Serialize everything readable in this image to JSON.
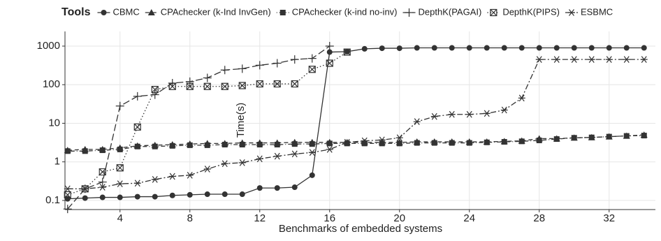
{
  "chart_data": {
    "type": "line",
    "legend_title": "Tools",
    "xlabel": "Benchmarks of embedded systems",
    "ylabel": "Time(s)",
    "log_y": true,
    "grid": true,
    "legend": "top",
    "x": [
      1,
      2,
      3,
      4,
      5,
      6,
      7,
      8,
      9,
      10,
      11,
      12,
      13,
      14,
      15,
      16,
      17,
      18,
      19,
      20,
      21,
      22,
      23,
      24,
      25,
      26,
      27,
      28,
      29,
      30,
      31,
      32,
      33,
      34
    ],
    "xlim": [
      0.85,
      34.65
    ],
    "xticks": [
      4,
      8,
      12,
      16,
      20,
      24,
      28,
      32
    ],
    "ylim": [
      0.058,
      2400
    ],
    "yticks": [
      0.1,
      1,
      10,
      100,
      1000
    ],
    "series": [
      {
        "name": "CBMC",
        "color": "#333333",
        "marker": "circle",
        "dash": "solid",
        "values": [
          0.11,
          0.115,
          0.12,
          0.12,
          0.125,
          0.125,
          0.135,
          0.14,
          0.145,
          0.145,
          0.145,
          0.21,
          0.21,
          0.22,
          0.45,
          700,
          720,
          850,
          880,
          880,
          900,
          900,
          900,
          900,
          900,
          900,
          900,
          900,
          900,
          900,
          900,
          900,
          900,
          900
        ]
      },
      {
        "name": "CPAchecker (k-Ind InvGen)",
        "color": "#333333",
        "marker": "triangle",
        "dash": "dashed",
        "values": [
          2,
          2.1,
          2.1,
          2.3,
          2.6,
          2.7,
          2.8,
          2.9,
          3,
          3,
          3.1,
          3.1,
          3.1,
          3.2,
          3.2,
          3.2,
          3.2,
          3.2,
          3.2,
          3.2,
          3.3,
          3.3,
          3.3,
          3.3,
          3.3,
          3.4,
          3.5,
          4,
          4,
          4.2,
          4.3,
          4.5,
          4.7,
          5
        ]
      },
      {
        "name": "CPAchecker (k-ind no-inv)",
        "color": "#333333",
        "marker": "square",
        "dash": "dotdash",
        "values": [
          1.9,
          1.9,
          2,
          2.1,
          2.5,
          2.5,
          2.6,
          2.7,
          2.7,
          2.8,
          2.8,
          2.8,
          2.8,
          2.9,
          2.9,
          3,
          3,
          3,
          3,
          3,
          3.1,
          3.1,
          3.1,
          3.1,
          3.2,
          3.3,
          3.4,
          3.6,
          3.9,
          4.2,
          4.3,
          4.5,
          4.7,
          4.8
        ]
      },
      {
        "name": "DepthK(PAGAI)",
        "color": "#333333",
        "marker": "plus",
        "dash": "longdash",
        "values": [
          0.06,
          0.2,
          0.3,
          28,
          50,
          55,
          110,
          120,
          150,
          240,
          260,
          320,
          360,
          450,
          480,
          1000,
          null,
          null,
          null,
          null,
          null,
          null,
          null,
          null,
          null,
          null,
          null,
          null,
          null,
          null,
          null,
          null,
          null,
          null
        ]
      },
      {
        "name": "DepthK(PIPS)",
        "color": "#333333",
        "marker": "boxx",
        "dash": "dotted",
        "values": [
          0.14,
          0.2,
          0.55,
          0.7,
          8,
          75,
          90,
          90,
          90,
          90,
          95,
          105,
          105,
          105,
          250,
          360,
          700,
          null,
          null,
          null,
          null,
          null,
          null,
          null,
          null,
          null,
          null,
          null,
          null,
          null,
          null,
          null,
          null,
          null
        ]
      },
      {
        "name": "ESBMC",
        "color": "#333333",
        "marker": "asterisk",
        "dash": "twodash",
        "values": [
          0.2,
          0.2,
          0.22,
          0.27,
          0.28,
          0.35,
          0.42,
          0.45,
          0.65,
          0.9,
          0.95,
          1.2,
          1.4,
          1.6,
          1.75,
          2.1,
          3.2,
          3.5,
          3.7,
          4.2,
          11,
          15,
          17,
          17,
          18,
          22,
          45,
          450,
          450,
          450,
          450,
          450,
          450,
          450
        ]
      }
    ]
  }
}
